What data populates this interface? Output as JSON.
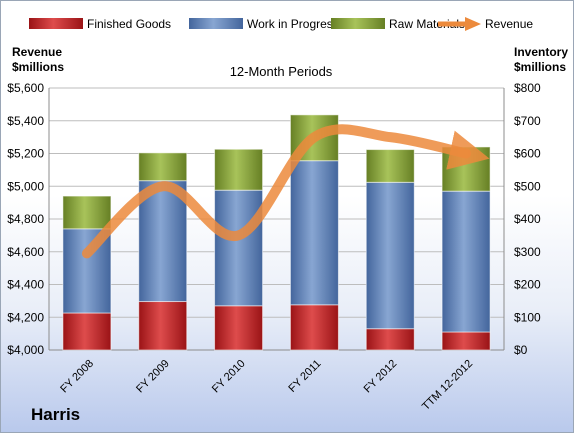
{
  "company": "Harris",
  "chart_data": {
    "type": "bar",
    "stacked": true,
    "title": "12-Month Periods",
    "categories": [
      "FY 2008",
      "FY 2009",
      "FY 2010",
      "FY 2011",
      "FY 2012",
      "TTM 12-2012"
    ],
    "left_axis": {
      "label_line1": "Revenue",
      "label_line2": "$millions",
      "ticks": [
        "$4,000",
        "$4,200",
        "$4,400",
        "$4,600",
        "$4,800",
        "$5,000",
        "$5,200",
        "$5,400",
        "$5,600"
      ],
      "range": [
        4000,
        5600
      ]
    },
    "right_axis": {
      "label_line1": "Inventory",
      "label_line2": "$millions",
      "ticks": [
        "$0",
        "$100",
        "$200",
        "$300",
        "$400",
        "$500",
        "$600",
        "$700",
        "$800"
      ],
      "range": [
        0,
        800
      ]
    },
    "series": [
      {
        "name": "Finished Goods",
        "axis": "right",
        "values": [
          113,
          148,
          135,
          138,
          65,
          55
        ],
        "color": "#c0282c"
      },
      {
        "name": "Work in Progress",
        "axis": "right",
        "values": [
          257,
          369,
          353,
          440,
          447,
          430
        ],
        "color": "#5b7fb8"
      },
      {
        "name": "Raw Materials",
        "axis": "right",
        "values": [
          100,
          85,
          125,
          140,
          100,
          135
        ],
        "color": "#88a53d"
      }
    ],
    "line_series": {
      "name": "Revenue",
      "axis": "left",
      "values": [
        4590,
        5000,
        4700,
        5300,
        5300,
        5200
      ],
      "color": "#ec8a3c"
    },
    "grid": true,
    "legend_position": "top"
  }
}
